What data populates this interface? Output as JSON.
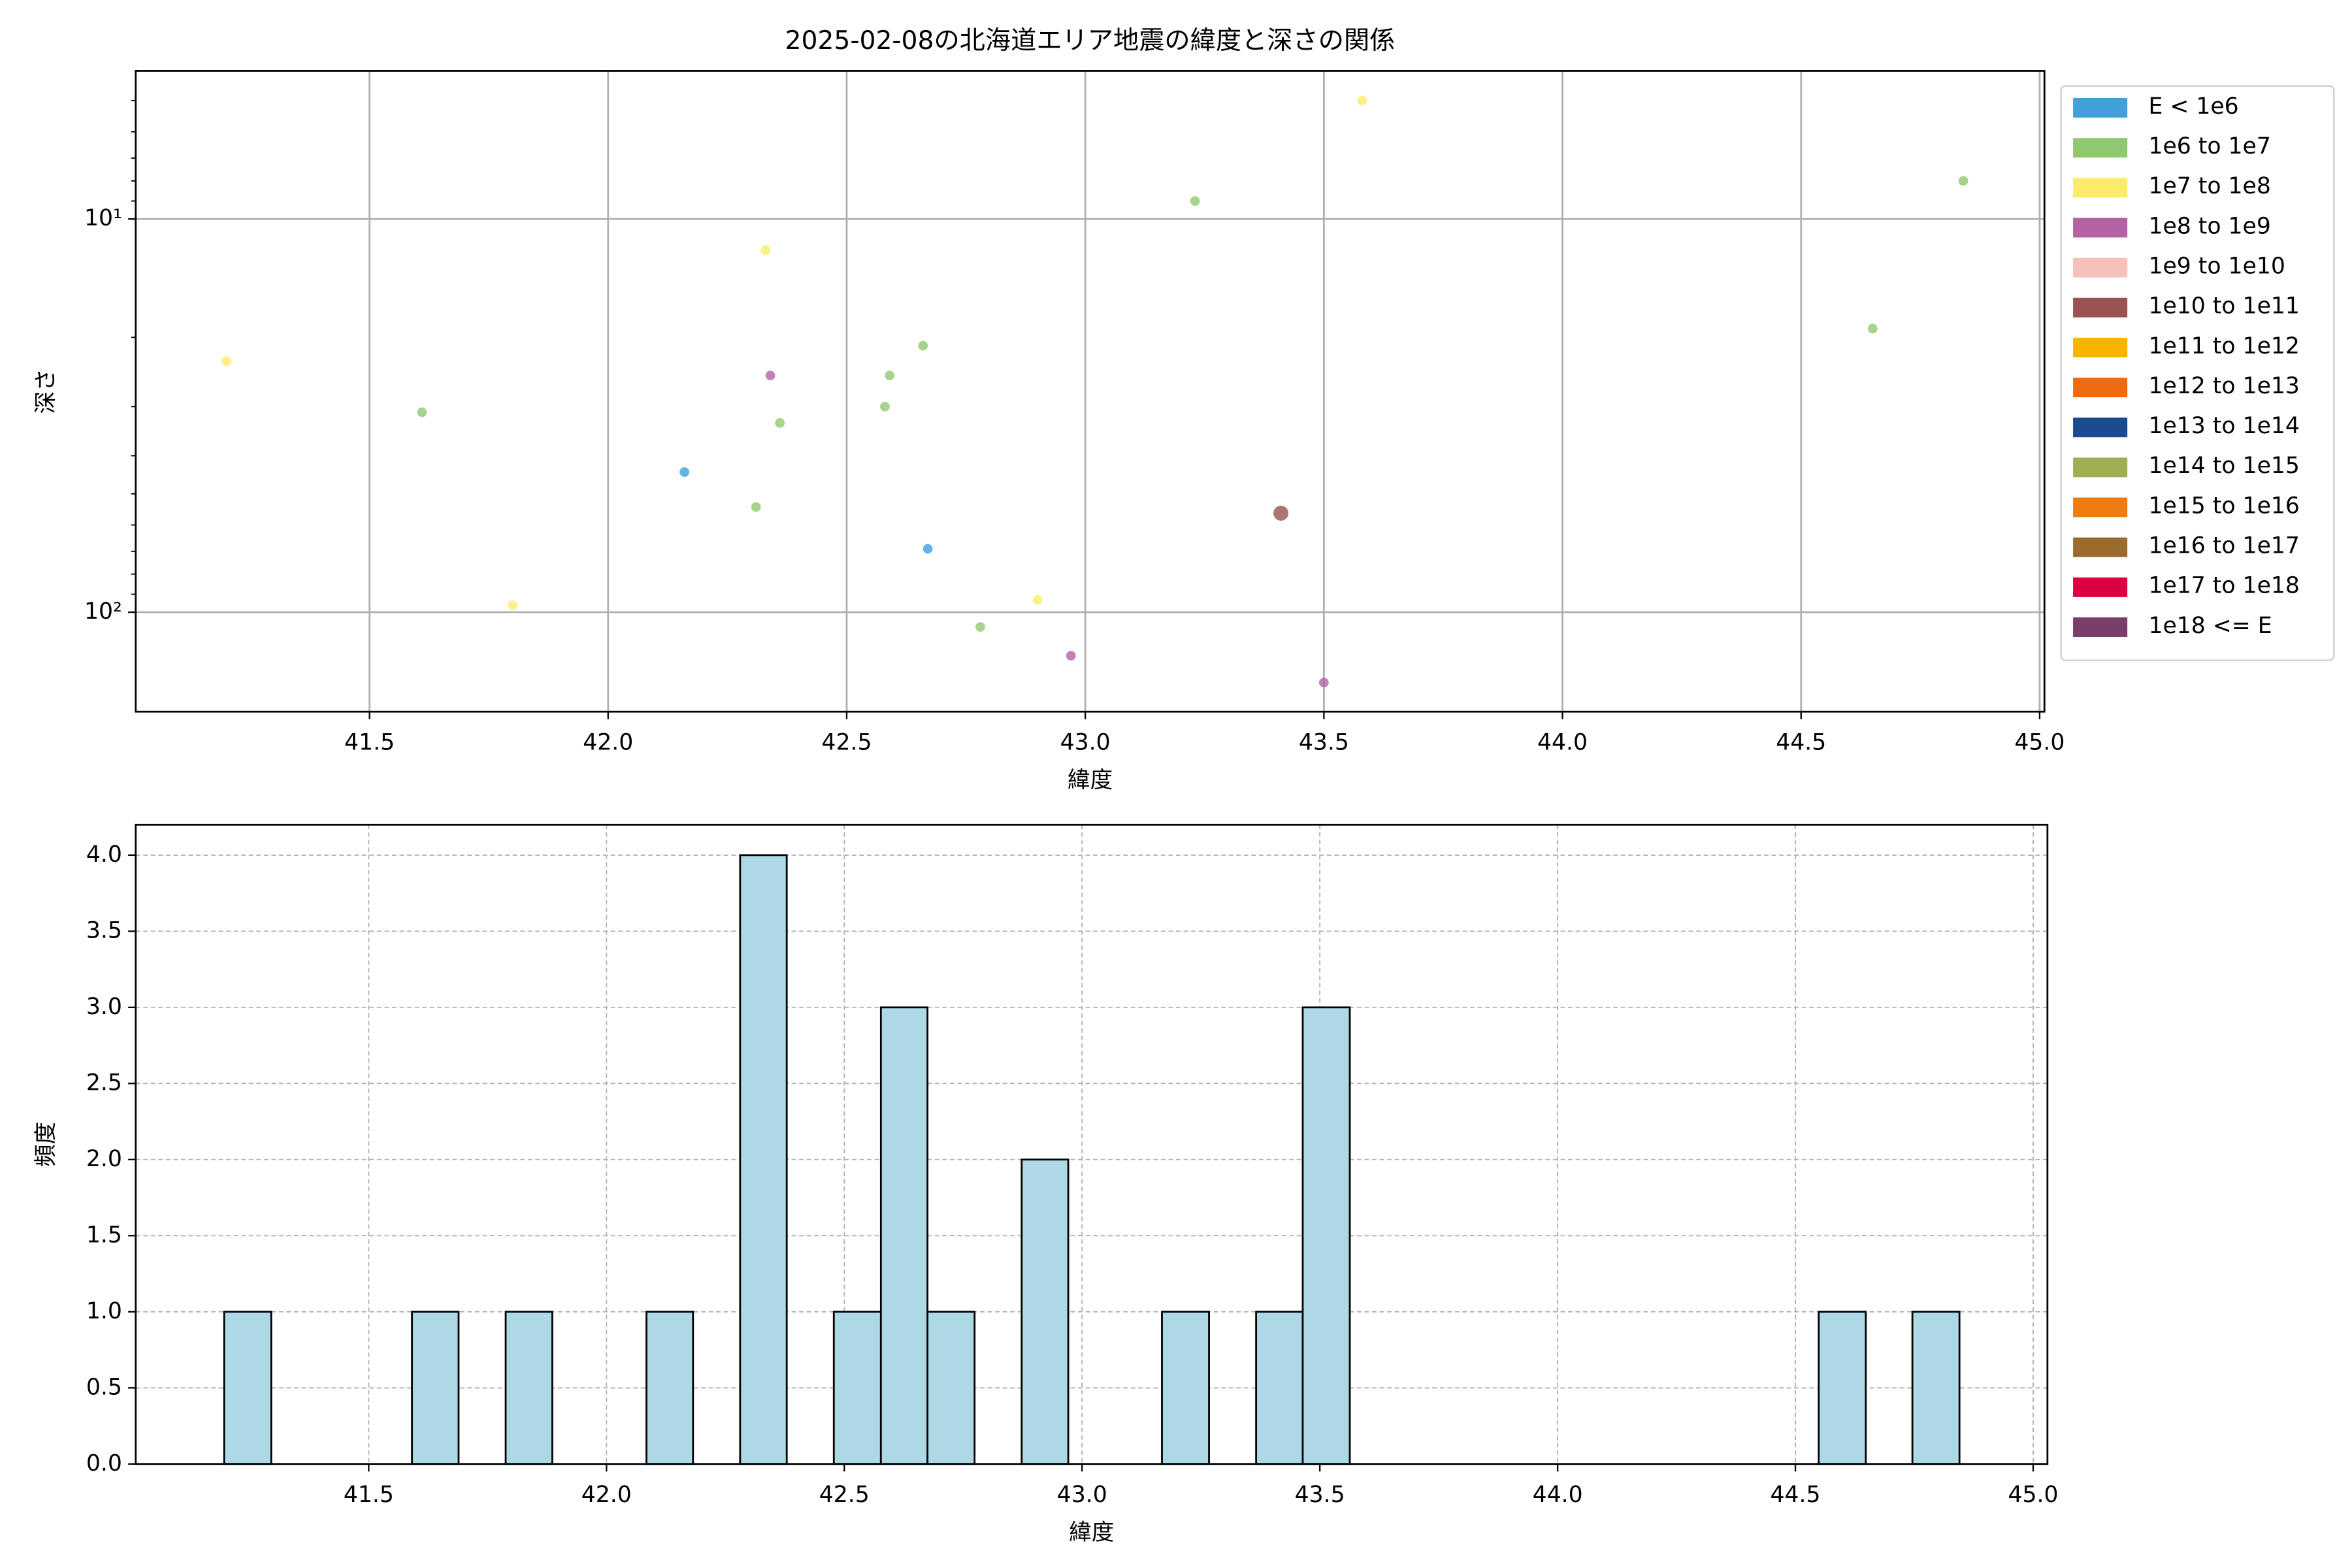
{
  "chart_data": [
    {
      "type": "scatter",
      "title": "2025-02-08の北海道エリア地震の緯度と深さの関係",
      "x_label": "緯度",
      "y_label": "深さ",
      "xlim": [
        41.01,
        45.01
      ],
      "xticks": [
        41.5,
        {
          "value": 42,
          "label": "42.0"
        },
        42.5,
        {
          "value": 43,
          "label": "43.0"
        },
        43.5,
        {
          "value": 44,
          "label": "44.0"
        },
        44.5,
        {
          "value": 45,
          "label": "45.0"
        }
      ],
      "ylim": [
        179,
        4.2
      ],
      "y_scale": "log",
      "yticks": [
        {
          "value": 10,
          "label": "10¹"
        },
        {
          "value": 100,
          "label": "10²"
        }
      ],
      "minor_yticks": [
        5,
        6,
        7,
        8,
        9,
        20,
        30,
        40,
        50,
        60,
        70,
        80,
        90
      ],
      "grid": true,
      "legend": "outside-right",
      "series": [
        {
          "name": "E < 1e6",
          "color": "#41a0dc",
          "x": [
            42.16,
            42.67
          ],
          "values": [
            44,
            69
          ]
        },
        {
          "name": "1e6 to 1e7",
          "color": "#90c96f",
          "x": [
            41.61,
            42.31,
            42.36,
            42.58,
            42.59,
            42.66,
            42.78,
            43.23,
            44.65,
            44.84
          ],
          "values": [
            31,
            54,
            33,
            30,
            25,
            21,
            109,
            9,
            19,
            8
          ]
        },
        {
          "name": "1e7 to 1e8",
          "color": "#fdec6a",
          "x": [
            41.2,
            42.33,
            41.8,
            42.9,
            43.58
          ],
          "values": [
            23,
            12,
            96,
            93,
            5
          ]
        },
        {
          "name": "1e8 to 1e9",
          "color": "#b562a5",
          "x": [
            42.34,
            42.97,
            43.5
          ],
          "values": [
            25,
            129,
            151
          ]
        },
        {
          "name": "1e9 to 1e10",
          "color": "#f6c1b9",
          "x": [],
          "values": []
        },
        {
          "name": "1e10 to 1e11",
          "color": "#9a5350",
          "x": [
            43.41
          ],
          "values": [
            56
          ],
          "marker_size": 5
        },
        {
          "name": "1e11 to 1e12",
          "color": "#f9b300",
          "x": [],
          "values": []
        },
        {
          "name": "1e12 to 1e13",
          "color": "#ef6a0e",
          "x": [],
          "values": []
        },
        {
          "name": "1e13 to 1e14",
          "color": "#1b4a8f",
          "x": [],
          "values": []
        },
        {
          "name": "1e14 to 1e15",
          "color": "#9fae53",
          "x": [],
          "values": []
        },
        {
          "name": "1e15 to 1e16",
          "color": "#ee7c12",
          "x": [],
          "values": []
        },
        {
          "name": "1e16 to 1e17",
          "color": "#9a6b2c",
          "x": [],
          "values": []
        },
        {
          "name": "1e17 to 1e18",
          "color": "#dc0040",
          "x": [],
          "values": []
        },
        {
          "name": "1e18 <= E",
          "color": "#7a3e6b",
          "x": [],
          "values": []
        }
      ]
    },
    {
      "type": "histogram",
      "x_label": "緯度",
      "y_label": "頻度",
      "color": "#add8e6",
      "bins": [
        41.196,
        41.295,
        41.393,
        41.492,
        41.591,
        41.689,
        41.788,
        41.886,
        41.985,
        42.084,
        42.182,
        42.281,
        42.379,
        42.478,
        42.577,
        42.675,
        42.774,
        42.873,
        42.971,
        43.07,
        43.168,
        43.267,
        43.366,
        43.464,
        43.563,
        43.661,
        43.76,
        43.859,
        43.957,
        44.056,
        44.155,
        44.253,
        44.352,
        44.45,
        44.549,
        44.648,
        44.746,
        44.845
      ],
      "values": [
        1,
        0,
        0,
        0,
        1,
        0,
        1,
        0,
        0,
        1,
        0,
        4,
        0,
        1,
        3,
        1,
        0,
        2,
        0,
        0,
        1,
        0,
        1,
        3,
        0,
        0,
        0,
        0,
        0,
        0,
        0,
        0,
        0,
        0,
        1,
        0,
        1
      ],
      "xlim": [
        41.01,
        45.03
      ],
      "xticks": [
        41.5,
        {
          "value": 42,
          "label": "42.0"
        },
        42.5,
        {
          "value": 43,
          "label": "43.0"
        },
        43.5,
        {
          "value": 44,
          "label": "44.0"
        },
        44.5,
        {
          "value": 45,
          "label": "45.0"
        }
      ],
      "ylim": [
        0,
        4.2
      ],
      "yticks": [
        {
          "value": 0,
          "label": "0.0"
        },
        {
          "value": 0.5,
          "label": "0.5"
        },
        {
          "value": 1,
          "label": "1.0"
        },
        {
          "value": 1.5,
          "label": "1.5"
        },
        {
          "value": 2,
          "label": "2.0"
        },
        {
          "value": 2.5,
          "label": "2.5"
        },
        {
          "value": 3,
          "label": "3.0"
        },
        {
          "value": 3.5,
          "label": "3.5"
        },
        {
          "value": 4,
          "label": "4.0"
        }
      ],
      "grid": true
    }
  ]
}
